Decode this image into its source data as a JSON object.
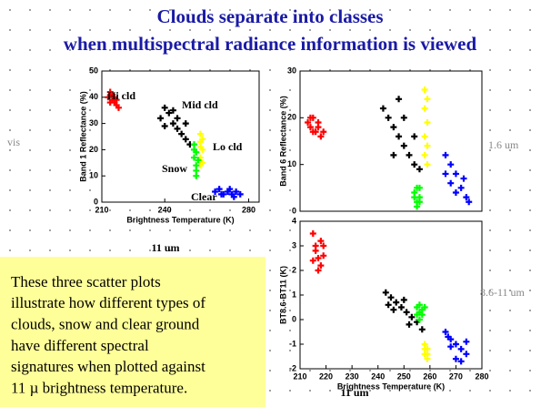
{
  "slide": {
    "title_lines": [
      "Clouds separate into classes",
      "when multispectral radiance information is viewed"
    ],
    "note_lines": [
      "These three scatter plots",
      "illustrate how different types of",
      "clouds, snow and clear ground",
      "have different spectral",
      "signatures when plotted against",
      "11 µ brightness temperature."
    ]
  },
  "chart_data": [
    {
      "type": "scatter",
      "side_label": "vis",
      "xlabel": "Brightness Temperature (K)",
      "ylabel": "Band 1 Reflectance (%)",
      "x_caption": "11 um",
      "xlim": [
        210,
        285
      ],
      "xticks": [
        210,
        240,
        280
      ],
      "ylim": [
        0,
        50
      ],
      "yticks": [
        0,
        10,
        20,
        30,
        40,
        50
      ],
      "annotations": [
        "Hi cld",
        "Mid cld",
        "Lo cld",
        "Snow",
        "Clear"
      ],
      "series": [
        {
          "color": "#ff0000",
          "x": [
            213,
            214,
            215,
            216,
            217,
            214,
            216,
            218,
            215,
            217
          ],
          "y": [
            40,
            42,
            39,
            38,
            37,
            38,
            40,
            36,
            41,
            39
          ]
        },
        {
          "color": "#000000",
          "x": [
            238,
            240,
            242,
            244,
            246,
            248,
            250,
            252,
            244,
            246,
            240,
            250
          ],
          "y": [
            32,
            36,
            34,
            30,
            28,
            26,
            24,
            22,
            35,
            32,
            29,
            30
          ]
        },
        {
          "color": "#ffff00",
          "x": [
            257,
            257,
            258,
            257,
            258,
            257,
            258,
            257
          ],
          "y": [
            26,
            23,
            20,
            17,
            15,
            21,
            24,
            14
          ]
        },
        {
          "color": "#00ff00",
          "x": [
            254,
            255,
            254,
            255,
            255,
            256,
            254,
            255
          ],
          "y": [
            22,
            19,
            17,
            14,
            12,
            16,
            20,
            10
          ]
        },
        {
          "color": "#0000ff",
          "x": [
            264,
            266,
            268,
            270,
            272,
            274,
            276,
            271,
            267,
            273
          ],
          "y": [
            4,
            5,
            3,
            4,
            3,
            4,
            3,
            5,
            3,
            2
          ]
        }
      ]
    },
    {
      "type": "scatter",
      "side_label": "1.6 um",
      "ylabel": "Band 6 Reflectance (%)",
      "xlim": [
        210,
        280
      ],
      "ylim": [
        0,
        30
      ],
      "yticks": [
        0,
        10,
        20,
        30
      ],
      "series": [
        {
          "color": "#ff0000",
          "x": [
            213,
            214,
            215,
            216,
            217,
            218,
            215,
            219,
            214,
            217
          ],
          "y": [
            19,
            18,
            20,
            17,
            18,
            16,
            17,
            17,
            20,
            19
          ]
        },
        {
          "color": "#000000",
          "x": [
            242,
            244,
            246,
            248,
            250,
            252,
            254,
            256,
            246,
            250,
            248,
            254
          ],
          "y": [
            22,
            20,
            18,
            16,
            14,
            12,
            10,
            9,
            12,
            20,
            24,
            16
          ]
        },
        {
          "color": "#ffff00",
          "x": [
            258,
            259,
            258,
            259,
            258,
            259,
            258,
            259
          ],
          "y": [
            26,
            24,
            22,
            19,
            16,
            14,
            12,
            10
          ]
        },
        {
          "color": "#00ff00",
          "x": [
            254,
            255,
            256,
            255,
            254,
            256,
            255,
            256
          ],
          "y": [
            4,
            5,
            3,
            2,
            3,
            5,
            1,
            2
          ]
        },
        {
          "color": "#0000ff",
          "x": [
            266,
            268,
            270,
            268,
            272,
            274,
            270,
            266,
            273,
            275
          ],
          "y": [
            12,
            10,
            8,
            6,
            5,
            3,
            4,
            8,
            7,
            2
          ]
        }
      ]
    },
    {
      "type": "scatter",
      "side_label": "8.6-11 um",
      "xlabel": "Brightness Temperature (K)",
      "ylabel": "BT8.6-BT11 (K)",
      "x_caption": "11 um",
      "xlim": [
        210,
        280
      ],
      "xticks": [
        210,
        220,
        230,
        240,
        250,
        260,
        270,
        280
      ],
      "ylim": [
        -2,
        4
      ],
      "yticks": [
        -2,
        -1,
        0,
        1,
        2,
        3,
        4
      ],
      "series": [
        {
          "color": "#ff0000",
          "x": [
            215,
            216,
            217,
            218,
            216,
            219,
            215,
            218,
            217,
            219
          ],
          "y": [
            3.5,
            3,
            2.5,
            2.2,
            2.8,
            2.6,
            2.4,
            3.2,
            2,
            3
          ]
        },
        {
          "color": "#000000",
          "x": [
            243,
            245,
            247,
            249,
            251,
            253,
            255,
            257,
            246,
            250,
            252,
            244
          ],
          "y": [
            1.1,
            0.9,
            0.7,
            0.5,
            0.3,
            0.1,
            -0.1,
            -0.4,
            0.4,
            0.8,
            -0.2,
            0.6
          ]
        },
        {
          "color": "#00ff00",
          "x": [
            255,
            256,
            257,
            256,
            257,
            258,
            255,
            256
          ],
          "y": [
            0.5,
            0.3,
            0.4,
            0,
            0.2,
            0.5,
            0.2,
            0.6
          ]
        },
        {
          "color": "#ffff00",
          "x": [
            258,
            259,
            258,
            259,
            258,
            259
          ],
          "y": [
            -1,
            -1.2,
            -1.4,
            -1.6,
            -1.2,
            -1.4
          ]
        },
        {
          "color": "#0000ff",
          "x": [
            266,
            268,
            270,
            272,
            274,
            270,
            268,
            274,
            272,
            267
          ],
          "y": [
            -0.5,
            -0.8,
            -1,
            -1.2,
            -1.4,
            -1.6,
            -1.1,
            -0.9,
            -1.7,
            -0.7
          ]
        }
      ]
    }
  ]
}
